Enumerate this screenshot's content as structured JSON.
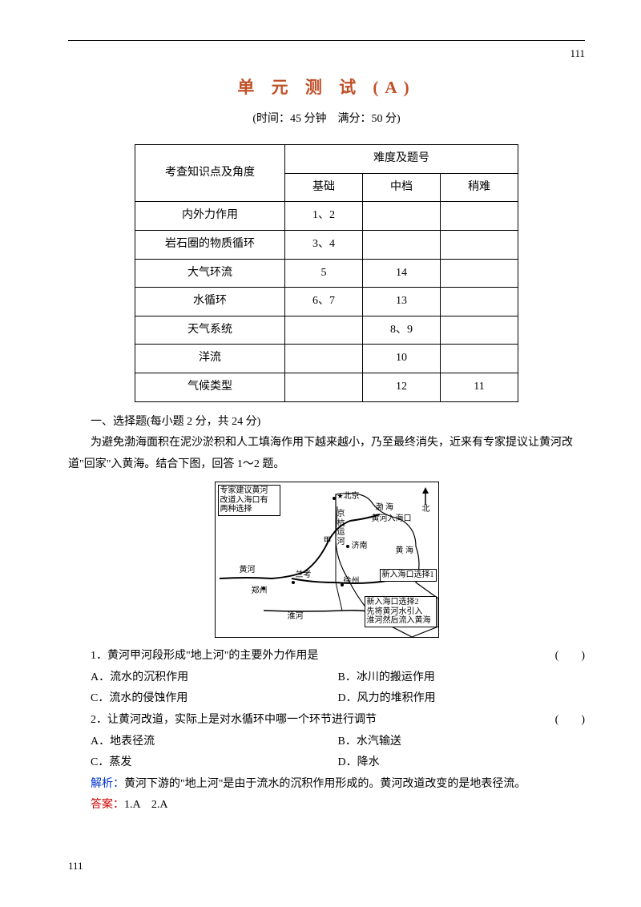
{
  "page_number": "111",
  "title_text": "单 元 测 试 (A)",
  "title_color": "#c05028",
  "subtitle": "(时间：45 分钟　满分：50 分)",
  "knowledge_table": {
    "header_main_left": "考查知识点及角度",
    "header_main_right": "难度及题号",
    "sub_headers": [
      "基础",
      "中档",
      "稍难"
    ],
    "rows": [
      {
        "topic": "内外力作用",
        "cells": [
          "1、2",
          "",
          ""
        ]
      },
      {
        "topic": "岩石圈的物质循环",
        "cells": [
          "3、4",
          "",
          ""
        ]
      },
      {
        "topic": "大气环流",
        "cells": [
          "5",
          "14",
          ""
        ]
      },
      {
        "topic": "水循环",
        "cells": [
          "6、7",
          "13",
          ""
        ]
      },
      {
        "topic": "天气系统",
        "cells": [
          "",
          "8、9",
          ""
        ]
      },
      {
        "topic": "洋流",
        "cells": [
          "",
          "10",
          ""
        ]
      },
      {
        "topic": "气候类型",
        "cells": [
          "",
          "12",
          "11"
        ]
      }
    ]
  },
  "section1_heading": "一、选择题(每小题 2 分，共 24 分)",
  "intro_para": "为避免渤海面积在泥沙淤积和人工填海作用下越来越小，乃至最终消失，近来有专家提议让黄河改道\"回家\"入黄海。结合下图，回答 1～2 题。",
  "map": {
    "advice_box": "专家建议黄河\n改道入海口有\n两种选择",
    "beijing": "北京",
    "north": "北",
    "bohai": "渤 海",
    "old_mouth": "黄河入海口",
    "canal": "京\n杭\n运\n河",
    "jia": "甲",
    "jinan": "济南",
    "huanghai": "黄 海",
    "huanghe": "黄河",
    "lankao": "兰考",
    "xuzhou": "徐州",
    "zhengzhou": "郑州",
    "huaihe": "淮河",
    "opt1": "新入海口选择1",
    "opt2": "新入海口选择2\n先将黄河水引入\n淮河然后流入黄海"
  },
  "q1": {
    "stem": "1．黄河甲河段形成\"地上河\"的主要外力作用是",
    "paren": "(　　)",
    "A": "A．流水的沉积作用",
    "B": "B．冰川的搬运作用",
    "C": "C．流水的侵蚀作用",
    "D": "D．风力的堆积作用"
  },
  "q2": {
    "stem": "2．让黄河改道，实际上是对水循环中哪一个环节进行调节",
    "paren": "(　　)",
    "A": "A．地表径流",
    "B": "B．水汽输送",
    "C": "C．蒸发",
    "D": "D．降水"
  },
  "analysis": {
    "label": "解析：",
    "text": "黄河下游的\"地上河\"是由于流水的沉积作用形成的。黄河改道改变的是地表径流。"
  },
  "answer": {
    "label": "答案：",
    "text": "1.A　2.A"
  }
}
